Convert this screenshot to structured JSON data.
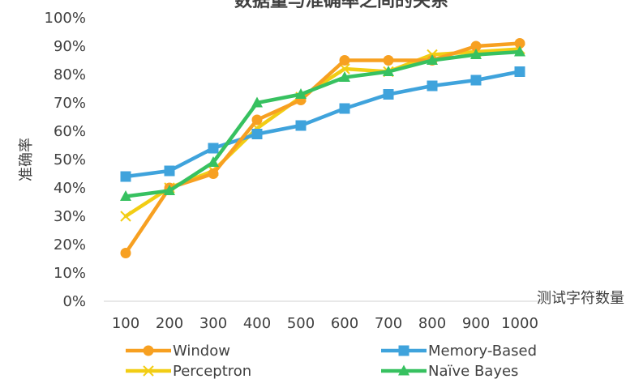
{
  "chart_data": {
    "type": "line",
    "title": "数据量与准确率之间的关系",
    "xlabel": "测试字符数量",
    "ylabel": "准确率",
    "categories": [
      "100",
      "200",
      "300",
      "400",
      "500",
      "600",
      "700",
      "800",
      "900",
      "1000"
    ],
    "y_ticks": [
      "0%",
      "10%",
      "20%",
      "30%",
      "40%",
      "50%",
      "60%",
      "70%",
      "80%",
      "90%",
      "100%"
    ],
    "ylim": [
      0,
      100
    ],
    "grid": false,
    "legend_position": "bottom",
    "series": [
      {
        "name": "Window",
        "color": "#f7a021",
        "marker": "circle",
        "values": [
          17,
          40,
          45,
          64,
          71,
          85,
          85,
          85,
          90,
          91
        ]
      },
      {
        "name": "Memory-Based",
        "color": "#3fa3dc",
        "marker": "square",
        "values": [
          44,
          46,
          54,
          59,
          62,
          68,
          73,
          76,
          78,
          81
        ]
      },
      {
        "name": "Perceptron",
        "color": "#f2cd14",
        "marker": "x",
        "values": [
          30,
          40,
          46,
          61,
          72,
          82,
          81,
          87,
          88,
          89
        ]
      },
      {
        "name": "Naïve Bayes",
        "color": "#37c160",
        "marker": "triangle",
        "values": [
          37,
          39,
          49,
          70,
          73,
          79,
          81,
          85,
          87,
          88
        ]
      }
    ]
  }
}
